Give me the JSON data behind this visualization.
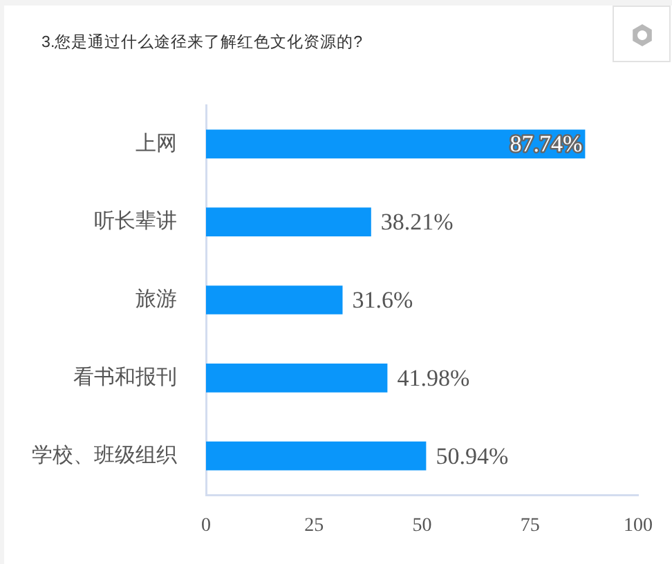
{
  "chart_data": {
    "type": "bar",
    "orientation": "horizontal",
    "title": "3.您是通过什么途径来了解红色文化资源的?",
    "categories": [
      "上网",
      "听长辈讲",
      "旅游",
      "看书和报刊",
      "学校、班级组织"
    ],
    "values": [
      87.74,
      38.21,
      31.6,
      41.98,
      50.94
    ],
    "value_labels": [
      "87.74%",
      "38.21%",
      "31.6%",
      "41.98%",
      "50.94%"
    ],
    "color": "#0a96fa",
    "xlim": [
      0,
      100
    ],
    "xticks": [
      0,
      25,
      50,
      75,
      100
    ],
    "grid": false,
    "legend": false
  }
}
